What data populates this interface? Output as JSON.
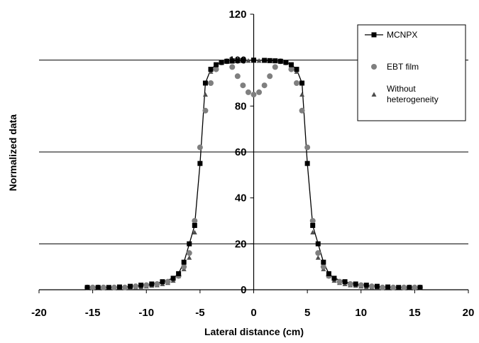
{
  "chart_data": {
    "type": "scatter",
    "title": "",
    "xlabel": "Lateral distance (cm)",
    "ylabel": "Normalized data",
    "xlim": [
      -20,
      20
    ],
    "ylim": [
      0,
      120
    ],
    "xticks": [
      -20,
      -15,
      -10,
      -5,
      0,
      5,
      10,
      15,
      20
    ],
    "yticks": [
      0,
      20,
      40,
      60,
      80,
      100,
      120
    ],
    "grid": "horizontal major gridlines at 20, 60, 100",
    "legend_position": "top-right",
    "series": [
      {
        "name": "MCNPX",
        "marker": "square",
        "line": true,
        "color": "#000000",
        "x": [
          -15.5,
          -14.5,
          -13.5,
          -12.5,
          -11.5,
          -10.5,
          -9.5,
          -8.5,
          -7.5,
          -7,
          -6.5,
          -6,
          -5.5,
          -5,
          -4.5,
          -4,
          -3.5,
          -3,
          -2.5,
          -2,
          -1.5,
          -1,
          0,
          1,
          1.5,
          2,
          2.5,
          3,
          3.5,
          4,
          4.5,
          5,
          5.5,
          6,
          6.5,
          7,
          7.5,
          8.5,
          9.5,
          10.5,
          11.5,
          12.5,
          13.5,
          14.5,
          15.5
        ],
        "y": [
          1,
          1,
          1,
          1.2,
          1.5,
          2,
          2.5,
          3.5,
          5,
          7,
          12,
          20,
          28,
          55,
          90,
          96,
          98,
          99,
          99.5,
          99.7,
          99.8,
          99.9,
          100,
          99.9,
          99.8,
          99.7,
          99.5,
          99,
          98,
          96,
          90,
          55,
          28,
          20,
          12,
          7,
          5,
          3.5,
          2.5,
          2,
          1.5,
          1.2,
          1,
          1,
          1
        ]
      },
      {
        "name": "EBT film",
        "marker": "circle",
        "line": false,
        "color": "#7f7f7f",
        "x": [
          -15.5,
          -15,
          -14.5,
          -14,
          -13,
          -12,
          -11,
          -10,
          -9,
          -8,
          -7,
          -6.5,
          -6,
          -5.5,
          -5,
          -4.5,
          -4,
          -3.5,
          -3,
          -2.5,
          -2,
          -1.5,
          -1,
          -0.5,
          0,
          0.5,
          1,
          1.5,
          2,
          2.5,
          3,
          3.5,
          4,
          4.5,
          5,
          5.5,
          6,
          6.5,
          7,
          8,
          9,
          10,
          11,
          12,
          13,
          14,
          14.5,
          15,
          15.5
        ],
        "y": [
          1,
          1,
          1,
          1,
          1,
          1,
          1.5,
          2,
          2.5,
          3.5,
          6,
          10,
          16,
          30,
          62,
          78,
          90,
          96,
          99,
          99.5,
          97,
          93,
          89,
          86,
          85,
          86,
          89,
          93,
          97,
          99.5,
          99,
          96,
          90,
          78,
          62,
          30,
          16,
          10,
          6,
          3.5,
          2.5,
          2,
          1.5,
          1,
          1,
          1,
          1,
          1,
          1
        ]
      },
      {
        "name": "Without heterogeneity",
        "marker": "triangle",
        "line": false,
        "color": "#4d4d4d",
        "x": [
          -15.5,
          -15,
          -14.5,
          -14,
          -13.5,
          -13,
          -12.5,
          -12,
          -11.5,
          -11,
          -10.5,
          -10,
          -9.5,
          -9,
          -8.5,
          -8,
          -7.5,
          -7,
          -6.5,
          -6,
          -5.5,
          -5,
          -4.5,
          -4,
          -3.5,
          -3,
          -2.5,
          -2,
          -1.5,
          -1,
          -0.5,
          0,
          0.5,
          1,
          1.5,
          2,
          2.5,
          3,
          3.5,
          4,
          4.5,
          5,
          5.5,
          6,
          6.5,
          7,
          7.5,
          8,
          8.5,
          9,
          9.5,
          10,
          10.5,
          11,
          11.5,
          12,
          12.5,
          13,
          13.5,
          14,
          14.5,
          15,
          15.5
        ],
        "y": [
          1,
          1,
          1,
          1,
          1,
          1,
          1,
          1,
          1,
          1,
          1.2,
          1.5,
          1.8,
          2,
          2.5,
          3,
          4,
          6,
          9,
          14,
          25,
          55,
          85,
          95,
          98,
          99,
          99.5,
          99.6,
          99.7,
          99.8,
          99.8,
          99.8,
          99.8,
          99.8,
          99.7,
          99.6,
          99.5,
          99,
          98,
          95,
          85,
          55,
          25,
          14,
          9,
          6,
          4,
          3,
          2.5,
          2,
          1.8,
          1.5,
          1.2,
          1,
          1,
          1,
          1,
          1,
          1,
          1,
          1,
          1,
          1
        ]
      }
    ]
  }
}
